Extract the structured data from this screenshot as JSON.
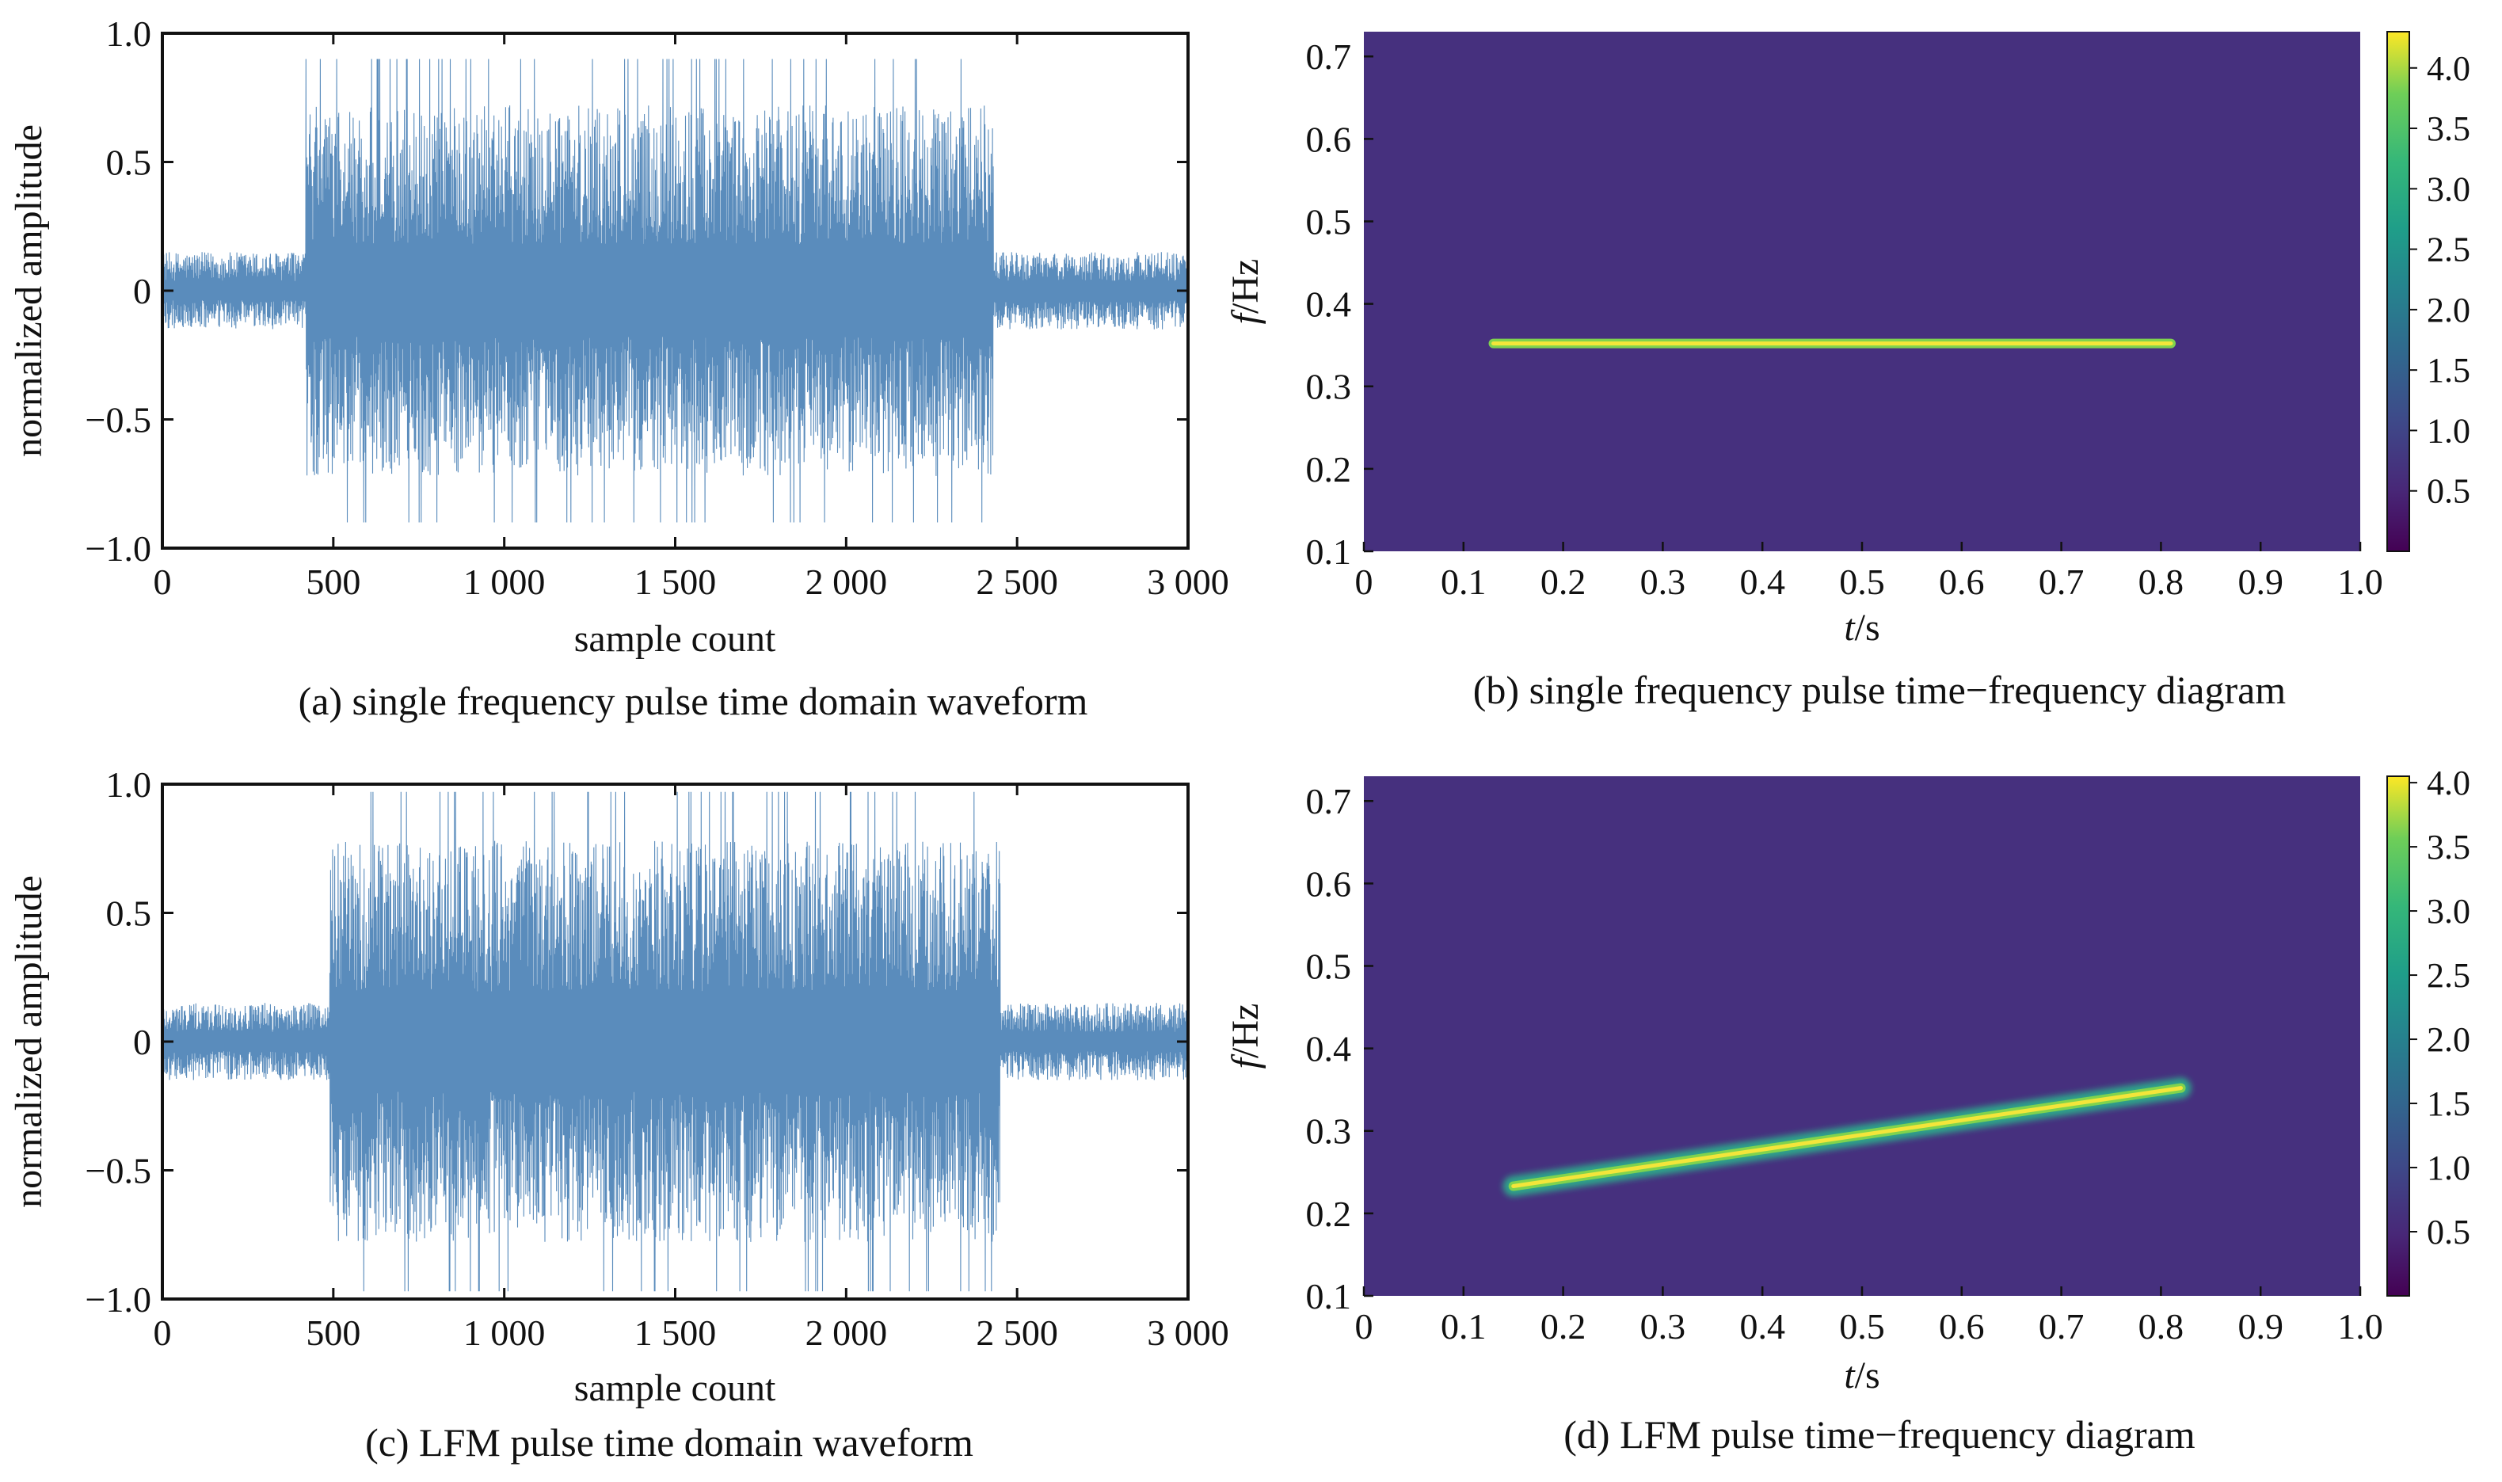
{
  "figure": {
    "panels": [
      {
        "caption": "(a) single frequency pulse time domain waveform"
      },
      {
        "caption": "(b) single frequency pulse time−frequency diagram"
      },
      {
        "caption": "(c) LFM pulse time domain waveform"
      },
      {
        "caption": "(d) LFM pulse time−frequency diagram"
      }
    ]
  },
  "chart_data": [
    {
      "id": "a",
      "type": "line",
      "title": "",
      "caption": "(a) single frequency pulse time domain waveform",
      "xlabel": "sample count",
      "ylabel": "normalized amplitude",
      "xlim": [
        0,
        3000
      ],
      "ylim": [
        -1.0,
        1.0
      ],
      "xticks": [
        0,
        500,
        1000,
        1500,
        2000,
        2500,
        3000
      ],
      "xtick_labels": [
        "0",
        "500",
        "1 000",
        "1 500",
        "2 000",
        "2 500",
        "3 000"
      ],
      "yticks": [
        -1.0,
        -0.5,
        0,
        0.5,
        1.0
      ],
      "ytick_labels": [
        "−1.0",
        "−0.5",
        "0",
        "0.5",
        "1.0"
      ],
      "series": [
        {
          "pulse_start": 420,
          "pulse_end": 2430,
          "pulse_amplitude": 0.72,
          "noise_amplitude": 0.15,
          "color": "#3d78b0"
        }
      ],
      "grid": false
    },
    {
      "id": "b",
      "type": "heatmap",
      "title": "",
      "caption": "(b) single frequency pulse time−frequency diagram",
      "xlabel_italic": "t",
      "xlabel_unit": "/s",
      "ylabel_italic": "f",
      "ylabel_unit": "/Hz",
      "xlim": [
        0,
        1.0
      ],
      "ylim": [
        0.1,
        0.73
      ],
      "xticks": [
        0,
        0.1,
        0.2,
        0.3,
        0.4,
        0.5,
        0.6,
        0.7,
        0.8,
        0.9,
        1.0
      ],
      "xtick_labels": [
        "0",
        "0.1",
        "0.2",
        "0.3",
        "0.4",
        "0.5",
        "0.6",
        "0.7",
        "0.8",
        "0.9",
        "1.0"
      ],
      "yticks": [
        0.1,
        0.2,
        0.3,
        0.4,
        0.5,
        0.6,
        0.7
      ],
      "ytick_labels": [
        "0.1",
        "0.2",
        "0.3",
        "0.4",
        "0.5",
        "0.6",
        "0.7"
      ],
      "ridge": {
        "t_start": 0.13,
        "t_end": 0.81,
        "f_start": 0.352,
        "f_end": 0.352
      },
      "colorbar": {
        "range": [
          0,
          4.3
        ],
        "ticks": [
          0.5,
          1.0,
          1.5,
          2.0,
          2.5,
          3.0,
          3.5,
          4.0
        ],
        "tick_labels": [
          "0.5",
          "1.0",
          "1.5",
          "2.0",
          "2.5",
          "3.0",
          "3.5",
          "4.0"
        ]
      },
      "background_color": "#46307e"
    },
    {
      "id": "c",
      "type": "line",
      "title": "",
      "caption": "(c) LFM pulse time domain waveform",
      "xlabel": "sample count",
      "ylabel": "normalized amplitude",
      "xlim": [
        0,
        3000
      ],
      "ylim": [
        -1.0,
        1.0
      ],
      "xticks": [
        0,
        500,
        1000,
        1500,
        2000,
        2500,
        3000
      ],
      "xtick_labels": [
        "0",
        "500",
        "1 000",
        "1 500",
        "2 000",
        "2 500",
        "3 000"
      ],
      "yticks": [
        -1.0,
        -0.5,
        0,
        0.5,
        1.0
      ],
      "ytick_labels": [
        "−1.0",
        "−0.5",
        "0",
        "0.5",
        "1.0"
      ],
      "series": [
        {
          "pulse_start": 490,
          "pulse_end": 2450,
          "pulse_amplitude": 0.78,
          "noise_amplitude": 0.15,
          "color": "#3d78b0"
        }
      ],
      "grid": false
    },
    {
      "id": "d",
      "type": "heatmap",
      "title": "",
      "caption": "(d) LFM pulse time−frequency diagram",
      "xlabel_italic": "t",
      "xlabel_unit": "/s",
      "ylabel_italic": "f",
      "ylabel_unit": "/Hz",
      "xlim": [
        0,
        1.0
      ],
      "ylim": [
        0.1,
        0.73
      ],
      "xticks": [
        0,
        0.1,
        0.2,
        0.3,
        0.4,
        0.5,
        0.6,
        0.7,
        0.8,
        0.9,
        1.0
      ],
      "xtick_labels": [
        "0",
        "0.1",
        "0.2",
        "0.3",
        "0.4",
        "0.5",
        "0.6",
        "0.7",
        "0.8",
        "0.9",
        "1.0"
      ],
      "yticks": [
        0.1,
        0.2,
        0.3,
        0.4,
        0.5,
        0.6,
        0.7
      ],
      "ytick_labels": [
        "0.1",
        "0.2",
        "0.3",
        "0.4",
        "0.5",
        "0.6",
        "0.7"
      ],
      "ridge": {
        "t_start": 0.15,
        "t_end": 0.82,
        "f_start": 0.233,
        "f_end": 0.352
      },
      "colorbar": {
        "range": [
          0,
          4.05
        ],
        "ticks": [
          0.5,
          1.0,
          1.5,
          2.0,
          2.5,
          3.0,
          3.5,
          4.0
        ],
        "tick_labels": [
          "0.5",
          "1.0",
          "1.5",
          "2.0",
          "2.5",
          "3.0",
          "3.5",
          "4.0"
        ]
      },
      "background_color": "#46307e"
    }
  ]
}
